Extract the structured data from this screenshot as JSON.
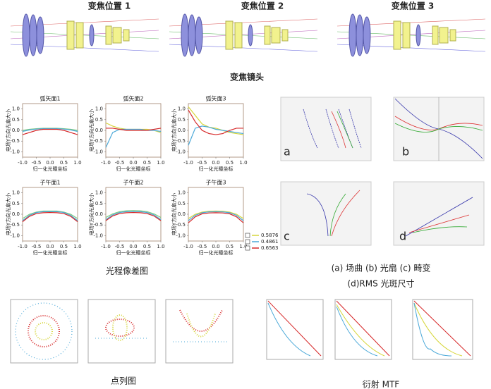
{
  "header": {
    "zoom_titles": [
      "变焦位置 1",
      "变焦位置 2",
      "变焦位置 3"
    ],
    "lens_caption": "变焦镜头"
  },
  "aberration_caption": "光程像差图",
  "right_panels": {
    "letters": [
      "a",
      "b",
      "c",
      "d"
    ],
    "caption_1": "(a) 场曲 (b) 光扇 (c) 畸变",
    "caption_2": "(d)RMS 光斑尺寸"
  },
  "spot_caption": "点列图",
  "mtf_caption": "衍射 MTF",
  "chart_data": [
    {
      "type": "line",
      "title": "弧矢面1",
      "xlabel": "归一化光瞳坐标",
      "ylabel": "电场Y方向光扇大小",
      "x": [
        -1,
        -0.75,
        -0.5,
        -0.25,
        0,
        0.25,
        0.5,
        0.75,
        1
      ],
      "xlim": [
        -1,
        1
      ],
      "ylim": [
        -1.25,
        1.25
      ],
      "xticks": [
        {
          "value": -1,
          "label": "-1.0"
        },
        {
          "value": -0.5,
          "label": "-0.5"
        },
        {
          "value": 0,
          "label": "0.0"
        },
        {
          "value": 0.5,
          "label": "0.5"
        },
        {
          "value": 1,
          "label": "1.0"
        }
      ],
      "yticks": [
        {
          "value": 1,
          "label": "1.0"
        },
        {
          "value": 0.5,
          "label": "0.5"
        },
        {
          "value": 0,
          "label": "0.0"
        },
        {
          "value": -0.5,
          "label": "-0.5"
        },
        {
          "value": -1,
          "label": "-1.0"
        }
      ],
      "series": [
        {
          "color": "#7fc97f",
          "values": [
            0,
            0.05,
            0.08,
            0.1,
            0.1,
            0.1,
            0.08,
            0.05,
            0
          ]
        },
        {
          "color": "#4aa8d8",
          "values": [
            -0.05,
            0.02,
            0.06,
            0.08,
            0.08,
            0.08,
            0.06,
            0.02,
            -0.05
          ]
        },
        {
          "color": "#d62728",
          "values": [
            -0.2,
            -0.1,
            0,
            0.05,
            0.05,
            0.05,
            0,
            -0.1,
            -0.2
          ]
        }
      ]
    },
    {
      "type": "line",
      "title": "弧矢面2",
      "xlabel": "归一化光瞳坐标",
      "ylabel": "电场Y方向光扇大小",
      "x": [
        -1,
        -0.75,
        -0.5,
        -0.25,
        0,
        0.25,
        0.5,
        0.75,
        1
      ],
      "xlim": [
        -1,
        1
      ],
      "ylim": [
        -1.25,
        1.25
      ],
      "xticks": [
        {
          "value": -1,
          "label": "-1.0"
        },
        {
          "value": -0.5,
          "label": "-0.5"
        },
        {
          "value": 0,
          "label": "0.0"
        },
        {
          "value": 0.5,
          "label": "0.5"
        },
        {
          "value": 1,
          "label": "1.0"
        }
      ],
      "yticks": [
        {
          "value": 1,
          "label": "1.0"
        },
        {
          "value": 0.5,
          "label": "0.5"
        },
        {
          "value": 0,
          "label": "0.0"
        },
        {
          "value": -0.5,
          "label": "-0.5"
        },
        {
          "value": -1,
          "label": "-1.0"
        }
      ],
      "series": [
        {
          "color": "#d6d63a",
          "values": [
            0.35,
            0.2,
            0.1,
            0.05,
            0.05,
            0.05,
            0.05,
            0,
            -0.1
          ]
        },
        {
          "color": "#4aa8d8",
          "values": [
            -0.8,
            -0.1,
            0.05,
            0.05,
            0.05,
            0.05,
            0,
            0,
            -0.05
          ]
        },
        {
          "color": "#d62728",
          "values": [
            0.1,
            0.1,
            0.05,
            0,
            0,
            0,
            0,
            0.05,
            0.1
          ]
        }
      ]
    },
    {
      "type": "line",
      "title": "弧矢面3",
      "xlabel": "归一化光瞳坐标",
      "ylabel": "电场Y方向光扇大小",
      "x": [
        -1,
        -0.75,
        -0.5,
        -0.25,
        0,
        0.25,
        0.5,
        0.75,
        1
      ],
      "xlim": [
        -1,
        1
      ],
      "ylim": [
        -1.25,
        1.25
      ],
      "xticks": [
        {
          "value": -1,
          "label": "-1.0"
        },
        {
          "value": -0.5,
          "label": "-0.5"
        },
        {
          "value": 0,
          "label": "0.0"
        },
        {
          "value": 0.5,
          "label": "0.5"
        },
        {
          "value": 1,
          "label": "1.0"
        }
      ],
      "yticks": [
        {
          "value": 1,
          "label": "1.0"
        },
        {
          "value": 0.5,
          "label": "0.5"
        },
        {
          "value": 0,
          "label": "0.0"
        },
        {
          "value": -0.5,
          "label": "-0.5"
        },
        {
          "value": -1,
          "label": "-1.0"
        }
      ],
      "series": [
        {
          "color": "#d6d63a",
          "values": [
            1.1,
            0.7,
            0.3,
            0.15,
            0.1,
            0,
            -0.1,
            -0.15,
            -0.2
          ]
        },
        {
          "color": "#4aa8d8",
          "values": [
            -0.7,
            0.1,
            0.2,
            0.15,
            0.05,
            0,
            -0.05,
            -0.1,
            -0.15
          ]
        },
        {
          "color": "#d62728",
          "values": [
            0.95,
            0.4,
            0,
            -0.15,
            -0.2,
            -0.15,
            0,
            0.1,
            0.1
          ]
        }
      ]
    },
    {
      "type": "line",
      "title": "子午面1",
      "xlabel": "归一化光瞳坐标",
      "ylabel": "电场Y方向光扇大小",
      "x": [
        -1,
        -0.75,
        -0.5,
        -0.25,
        0,
        0.25,
        0.5,
        0.75,
        1
      ],
      "xlim": [
        -1,
        1
      ],
      "ylim": [
        -1.25,
        1.25
      ],
      "xticks": [
        {
          "value": -1,
          "label": "-1.0"
        },
        {
          "value": -0.5,
          "label": "-0.5"
        },
        {
          "value": 0,
          "label": "0.0"
        },
        {
          "value": 0.5,
          "label": "0.5"
        },
        {
          "value": 1,
          "label": "1.0"
        }
      ],
      "yticks": [
        {
          "value": 1,
          "label": "1.0"
        },
        {
          "value": 0.5,
          "label": "0.5"
        },
        {
          "value": 0,
          "label": "0.0"
        },
        {
          "value": -0.5,
          "label": "-0.5"
        },
        {
          "value": -1,
          "label": "-1.0"
        }
      ],
      "series": [
        {
          "color": "#7fc97f",
          "values": [
            -0.2,
            0,
            0.1,
            0.15,
            0.15,
            0.15,
            0.1,
            0,
            -0.2
          ]
        },
        {
          "color": "#4aa8d8",
          "values": [
            -0.3,
            -0.05,
            0.08,
            0.12,
            0.12,
            0.12,
            0.08,
            -0.05,
            -0.3
          ]
        },
        {
          "color": "#d62728",
          "values": [
            -0.35,
            -0.1,
            0.03,
            0.07,
            0.08,
            0.07,
            0.03,
            -0.1,
            -0.35
          ]
        }
      ]
    },
    {
      "type": "line",
      "title": "子午面2",
      "xlabel": "归一化光瞳坐标",
      "ylabel": "电场Y方向光扇大小",
      "x": [
        -1,
        -0.75,
        -0.5,
        -0.25,
        0,
        0.25,
        0.5,
        0.75,
        1
      ],
      "xlim": [
        -1,
        1
      ],
      "ylim": [
        -1.25,
        1.25
      ],
      "xticks": [
        {
          "value": -1,
          "label": "-1.0"
        },
        {
          "value": -0.5,
          "label": "-0.5"
        },
        {
          "value": 0,
          "label": "0.0"
        },
        {
          "value": 0.5,
          "label": "0.5"
        },
        {
          "value": 1,
          "label": "1.0"
        }
      ],
      "yticks": [
        {
          "value": 1,
          "label": "1.0"
        },
        {
          "value": 0.5,
          "label": "0.5"
        },
        {
          "value": 0,
          "label": "0.0"
        },
        {
          "value": -0.5,
          "label": "-0.5"
        },
        {
          "value": -1,
          "label": "-1.0"
        }
      ],
      "series": [
        {
          "color": "#7fc97f",
          "values": [
            -0.15,
            0.02,
            0.12,
            0.16,
            0.17,
            0.16,
            0.12,
            0.02,
            -0.15
          ]
        },
        {
          "color": "#4aa8d8",
          "values": [
            -0.25,
            -0.03,
            0.08,
            0.12,
            0.13,
            0.12,
            0.08,
            -0.03,
            -0.25
          ]
        },
        {
          "color": "#d62728",
          "values": [
            -0.3,
            -0.08,
            0.03,
            0.07,
            0.08,
            0.07,
            0.03,
            -0.08,
            -0.3
          ]
        }
      ]
    },
    {
      "type": "line",
      "title": "子午面3",
      "xlabel": "归一化光瞳坐标",
      "ylabel": "电场Y方向光扇大小",
      "x": [
        -1,
        -0.75,
        -0.5,
        -0.25,
        0,
        0.25,
        0.5,
        0.75,
        1
      ],
      "xlim": [
        -1,
        1
      ],
      "ylim": [
        -1.25,
        1.25
      ],
      "xticks": [
        {
          "value": -1,
          "label": "-1.0"
        },
        {
          "value": -0.5,
          "label": "-0.5"
        },
        {
          "value": 0,
          "label": "0.0"
        },
        {
          "value": 0.5,
          "label": "0.5"
        },
        {
          "value": 1,
          "label": "1.0"
        }
      ],
      "yticks": [
        {
          "value": 1,
          "label": "1.0"
        },
        {
          "value": 0.5,
          "label": "0.5"
        },
        {
          "value": 0,
          "label": "0.0"
        },
        {
          "value": -0.5,
          "label": "-0.5"
        },
        {
          "value": -1,
          "label": "-1.0"
        }
      ],
      "legend": "outside-right",
      "series": [
        {
          "name": "0.5876",
          "color": "#d6d63a",
          "values": [
            -0.2,
            0,
            0.1,
            0.14,
            0.15,
            0.14,
            0.1,
            0,
            -0.2
          ]
        },
        {
          "name": "0.4861",
          "color": "#4aa8d8",
          "values": [
            -0.3,
            -0.05,
            0.07,
            0.11,
            0.12,
            0.11,
            0.07,
            -0.05,
            -0.3
          ]
        },
        {
          "name": "0.6563",
          "color": "#d62728",
          "values": [
            -0.4,
            -0.12,
            0.02,
            0.06,
            0.07,
            0.06,
            0.02,
            -0.12,
            -0.4
          ]
        }
      ]
    }
  ]
}
